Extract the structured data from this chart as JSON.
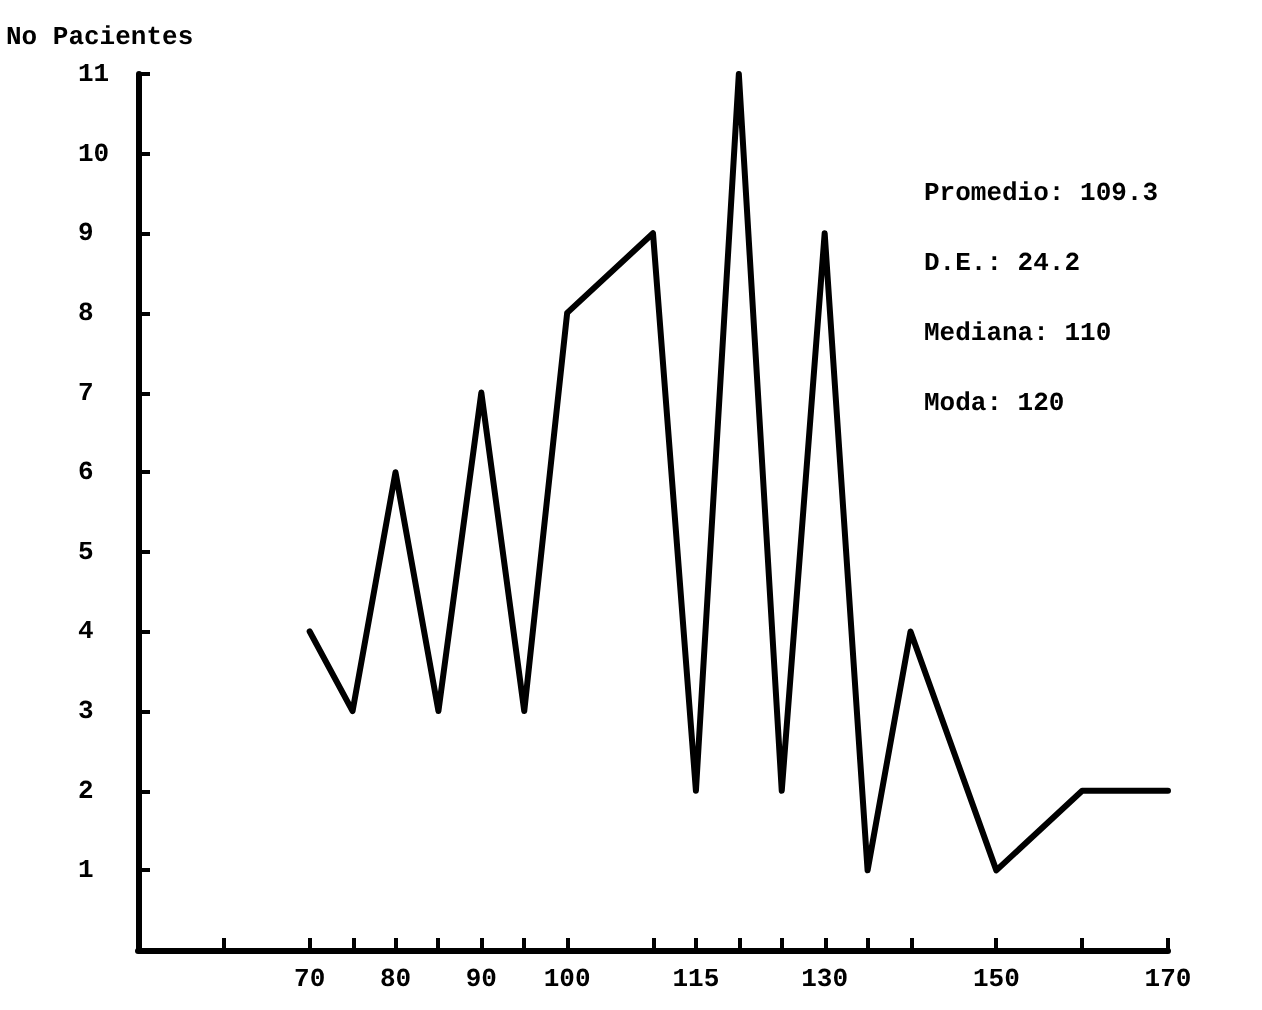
{
  "chart_data": {
    "type": "line",
    "ylabel": "No Pacientes",
    "annotations": [
      "Promedio: 109.3",
      "D.E.: 24.2",
      "Mediana: 110",
      "Moda: 120"
    ],
    "x": [
      70,
      75,
      80,
      85,
      90,
      95,
      100,
      110,
      115,
      120,
      125,
      130,
      135,
      140,
      150,
      160,
      170
    ],
    "series": [
      {
        "color": "#000000",
        "values": [
          4,
          3,
          6,
          3,
          7,
          3,
          8,
          9,
          2,
          11,
          2,
          9,
          1,
          4,
          1,
          2,
          2
        ]
      }
    ],
    "xlim": [
      50,
      170
    ],
    "xticks": [
      {
        "value": 60,
        "label": null
      },
      70,
      {
        "value": 75,
        "label": null
      },
      80,
      {
        "value": 85,
        "label": null
      },
      90,
      {
        "value": 95,
        "label": null
      },
      100,
      {
        "value": 110,
        "label": null
      },
      115,
      {
        "value": 120,
        "label": null
      },
      {
        "value": 125,
        "label": null
      },
      130,
      {
        "value": 135,
        "label": null
      },
      {
        "value": 140,
        "label": null
      },
      150,
      {
        "value": 160,
        "label": null
      },
      170
    ],
    "ylim": [
      0,
      11
    ],
    "yticks": [
      1,
      2,
      3,
      4,
      5,
      6,
      7,
      8,
      9,
      10,
      11
    ],
    "grid": false,
    "marker": "none",
    "line_style": "solid"
  }
}
